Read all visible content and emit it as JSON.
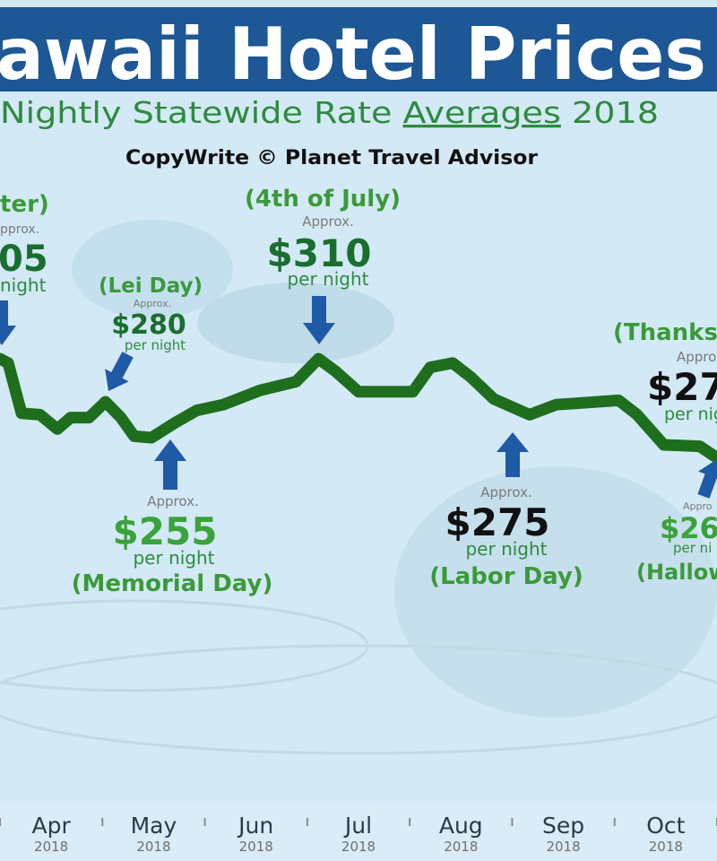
{
  "chart_data": {
    "type": "line",
    "title": "awaii Hotel Prices",
    "subtitle": [
      "Nightly Statewide Rate",
      "Averages",
      "2018"
    ],
    "copyright": "CopyWrite © Planet Travel Advisor",
    "color": "#1e6e1e",
    "x": [
      3.5,
      3.58,
      3.71,
      3.89,
      4.06,
      4.19,
      4.37,
      4.53,
      4.68,
      4.81,
      4.98,
      5.2,
      5.42,
      5.68,
      6.04,
      6.39,
      6.61,
      6.78,
      7.0,
      7.53,
      7.7,
      7.92,
      8.1,
      8.32,
      8.67,
      8.93,
      9.54,
      9.72,
      9.98,
      10.33,
      10.5
    ],
    "values": [
      310,
      307,
      272,
      271,
      261,
      269,
      269,
      280,
      269,
      256,
      255,
      265,
      274,
      278,
      288,
      294,
      310,
      301,
      287,
      287,
      304,
      307,
      297,
      282,
      271,
      278,
      281,
      271,
      250,
      249,
      241
    ],
    "xlim": [
      3.5,
      10.5
    ],
    "ylim": [
      240,
      320
    ],
    "xticks": [
      {
        "value": 4,
        "label": "Apr"
      },
      {
        "value": 5,
        "label": "May"
      },
      {
        "value": 6,
        "label": "Jun"
      },
      {
        "value": 7,
        "label": "Jul"
      },
      {
        "value": 8,
        "label": "Aug"
      },
      {
        "value": 9,
        "label": "Sep"
      },
      {
        "value": 10,
        "label": "Oct"
      }
    ],
    "xtick_year": "2018",
    "xminor_ticks": [
      3.5,
      4.5,
      5.5,
      6.5,
      7.5,
      8.5,
      9.5,
      10.5
    ],
    "annotations": {
      "easter": {
        "event": "ter)",
        "approx": "pprox.",
        "price": "05",
        "per_night": "night"
      },
      "lei_day": {
        "event": "(Lei Day)",
        "approx": "Approx.",
        "price": "$280",
        "per_night": "per night"
      },
      "july_4": {
        "event": "(4th of July)",
        "approx": "Approx.",
        "price": "$310",
        "per_night": "per night"
      },
      "memorial_day": {
        "event": "(Memorial Day)",
        "approx": "Approx.",
        "price": "$255",
        "per_night": "per night"
      },
      "labor_day": {
        "event": "(Labor Day)",
        "approx": "Approx.",
        "price": "$275",
        "per_night": "per night"
      },
      "thanksgiving": {
        "event": "(Thanksg",
        "approx": "Appro",
        "price": "$27",
        "per_night": "per nig"
      },
      "halloween": {
        "event": "(Hallow",
        "approx": "Appro",
        "price": "$26",
        "per_night": "per ni"
      }
    }
  }
}
